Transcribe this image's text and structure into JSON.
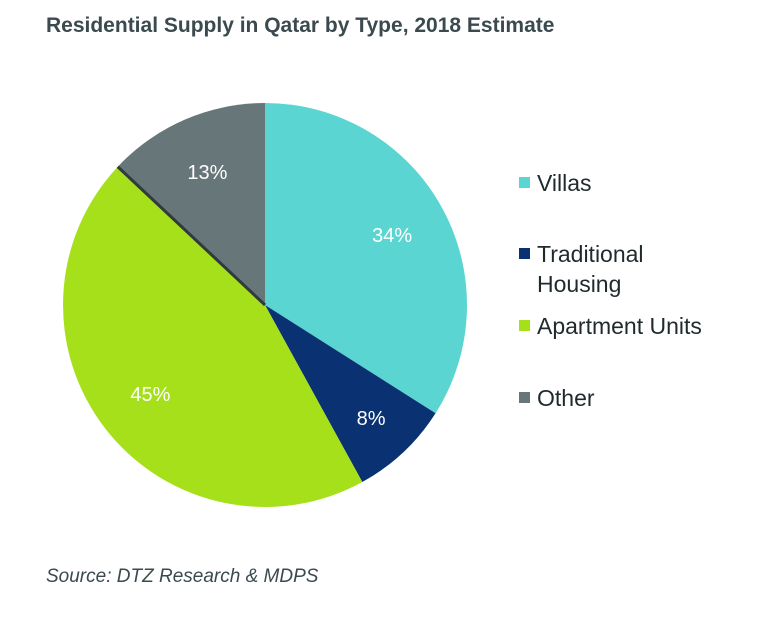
{
  "chart_data": {
    "type": "pie",
    "title": "Residential Supply in Qatar by Type, 2018 Estimate",
    "slices": [
      {
        "label": "Villas",
        "value": 34,
        "display": "34%",
        "color": "#5bd5d2"
      },
      {
        "label": "Traditional\nHousing",
        "value": 8,
        "display": "8%",
        "color": "#0a3172"
      },
      {
        "label": "Apartment Units",
        "value": 45,
        "display": "45%",
        "color": "#a6e01b"
      },
      {
        "label": "Other",
        "value": 13,
        "display": "13%",
        "color": "#677679"
      }
    ],
    "legend_position": "right"
  },
  "source": "Source: DTZ Research & MDPS"
}
